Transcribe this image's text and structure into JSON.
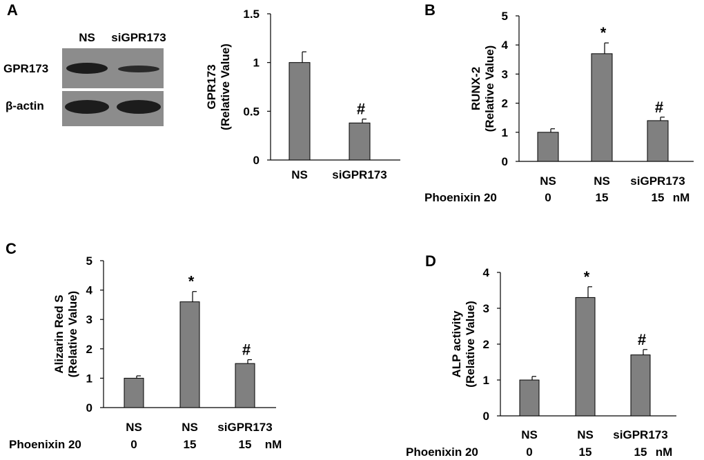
{
  "figure": {
    "panels": {
      "A": "A",
      "B": "B",
      "C": "C",
      "D": "D"
    }
  },
  "western_blot": {
    "lanes": [
      "NS",
      "siGPR173"
    ],
    "rows": [
      "GPR173",
      "β-actin"
    ],
    "background_color": "#8c8c8c",
    "band_color": "#1c1c1c"
  },
  "colors": {
    "bar_fill": "#808080",
    "bar_stroke": "#000000",
    "axis": "#000000"
  },
  "chart_data": [
    {
      "id": "A",
      "type": "bar",
      "title": "",
      "xlabel": "",
      "ylabel_lines": [
        "GPR173",
        "(Relative Value)"
      ],
      "categories": [
        "NS",
        "siGPR173"
      ],
      "values": [
        1.0,
        0.38
      ],
      "errors": [
        0.11,
        0.04
      ],
      "annotations": [
        "",
        "#"
      ],
      "ylim": [
        0,
        1.5
      ],
      "yticks": [
        0,
        0.5,
        1,
        1.5
      ],
      "ytick_labels": [
        "0",
        "0.5",
        "1",
        "1.5"
      ],
      "treatment_label": "",
      "treatment_values": [],
      "treatment_unit": ""
    },
    {
      "id": "B",
      "type": "bar",
      "title": "",
      "xlabel": "",
      "ylabel_lines": [
        "RUNX-2",
        "(Relative Value)"
      ],
      "categories": [
        "NS",
        "NS",
        "siGPR173"
      ],
      "values": [
        1.0,
        3.7,
        1.4
      ],
      "errors": [
        0.12,
        0.37,
        0.12
      ],
      "annotations": [
        "",
        "*",
        "#"
      ],
      "ylim": [
        0,
        5
      ],
      "yticks": [
        0,
        1,
        2,
        3,
        4,
        5
      ],
      "ytick_labels": [
        "0",
        "1",
        "2",
        "3",
        "4",
        "5"
      ],
      "treatment_label": "Phoenixin 20",
      "treatment_values": [
        "0",
        "15",
        "15"
      ],
      "treatment_unit": "nM"
    },
    {
      "id": "C",
      "type": "bar",
      "title": "",
      "xlabel": "",
      "ylabel_lines": [
        "Alizarin Red S",
        "(Relative Value)"
      ],
      "categories": [
        "NS",
        "NS",
        "siGPR173"
      ],
      "values": [
        1.0,
        3.6,
        1.5
      ],
      "errors": [
        0.08,
        0.35,
        0.13
      ],
      "annotations": [
        "",
        "*",
        "#"
      ],
      "ylim": [
        0,
        5
      ],
      "yticks": [
        0,
        1,
        2,
        3,
        4,
        5
      ],
      "ytick_labels": [
        "0",
        "1",
        "2",
        "3",
        "4",
        "5"
      ],
      "treatment_label": "Phoenixin 20",
      "treatment_values": [
        "0",
        "15",
        "15"
      ],
      "treatment_unit": "nM"
    },
    {
      "id": "D",
      "type": "bar",
      "title": "",
      "xlabel": "",
      "ylabel_lines": [
        "ALP activity",
        "(Relative Value)"
      ],
      "categories": [
        "NS",
        "NS",
        "siGPR173"
      ],
      "values": [
        1.0,
        3.3,
        1.7
      ],
      "errors": [
        0.1,
        0.3,
        0.15
      ],
      "annotations": [
        "",
        "*",
        "#"
      ],
      "ylim": [
        0,
        4
      ],
      "yticks": [
        0,
        1,
        2,
        3,
        4
      ],
      "ytick_labels": [
        "0",
        "1",
        "2",
        "3",
        "4"
      ],
      "treatment_label": "Phoenixin 20",
      "treatment_values": [
        "0",
        "15",
        "15"
      ],
      "treatment_unit": "nM"
    }
  ]
}
